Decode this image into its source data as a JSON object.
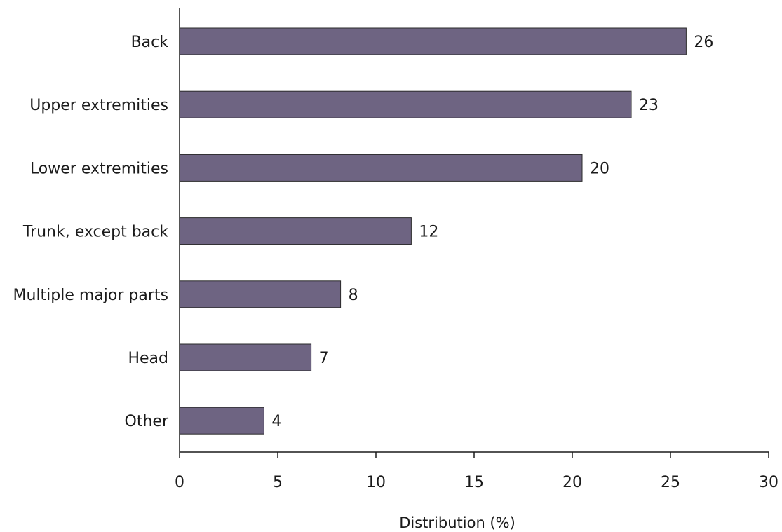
{
  "chart_data": {
    "type": "bar",
    "orientation": "horizontal",
    "title": "",
    "xlabel": "Distribution (%)",
    "ylabel": "",
    "categories": [
      "Back",
      "Upper extremities",
      "Lower extremities",
      "Trunk, except back",
      "Multiple major parts",
      "Head",
      "Other"
    ],
    "values": [
      25.8,
      23.0,
      20.5,
      11.8,
      8.2,
      6.7,
      4.3
    ],
    "data_labels": [
      "26",
      "23",
      "20",
      "12",
      "8",
      "7",
      "4"
    ],
    "xlim": [
      0,
      30
    ],
    "xticks": [
      0,
      5,
      10,
      15,
      20,
      25,
      30
    ],
    "grid": false,
    "bar_color": "#6e6482"
  }
}
